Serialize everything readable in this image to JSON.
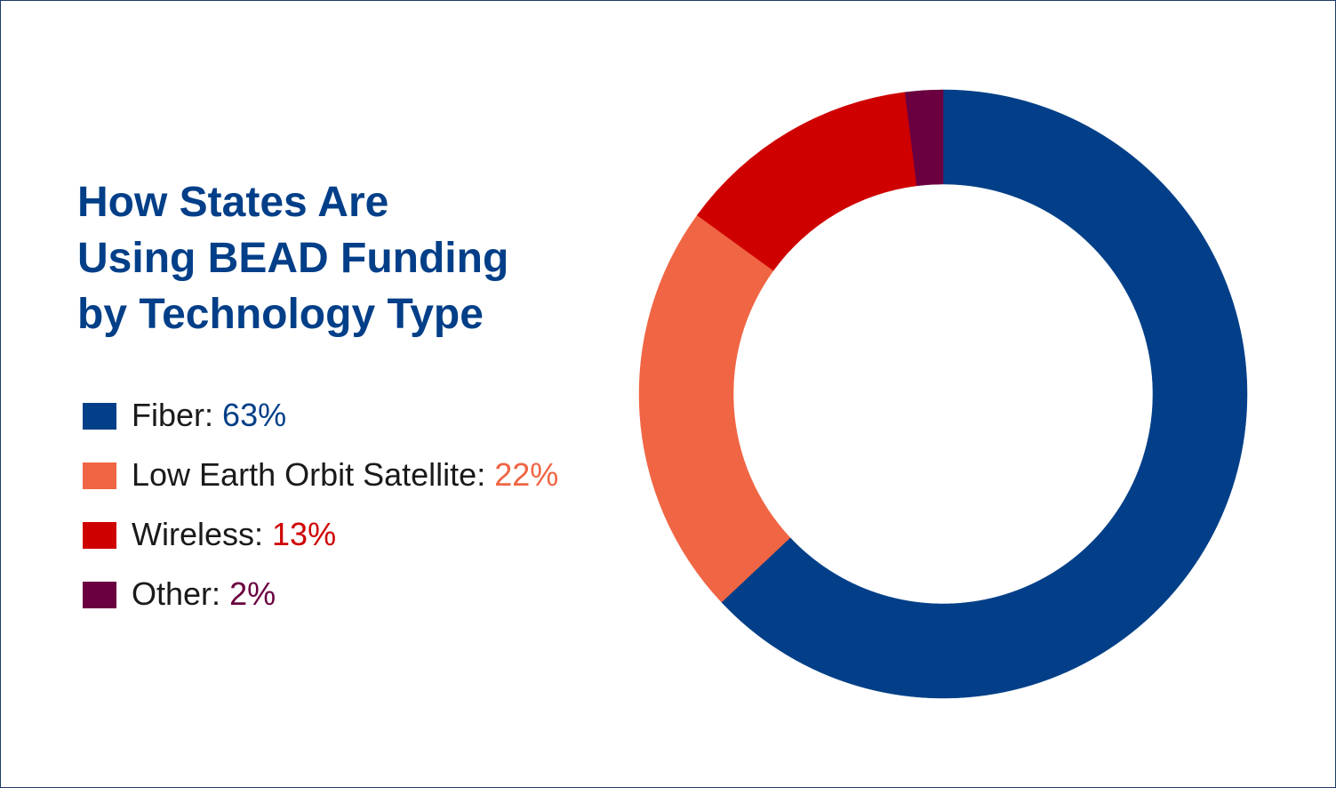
{
  "chart_data": {
    "type": "pie",
    "title": "How States Are Using BEAD Funding by Technology Type",
    "title_lines": [
      "How States Are",
      "Using BEAD Funding",
      "by Technology Type"
    ],
    "donut": true,
    "legend_position": "left",
    "slices": [
      {
        "label": "Fiber",
        "value": 63,
        "display": "63%",
        "color": "#023f88"
      },
      {
        "label": "Low Earth Orbit Satellite",
        "value": 22,
        "display": "22%",
        "color": "#f06544"
      },
      {
        "label": "Wireless",
        "value": 13,
        "display": "13%",
        "color": "#cf0000"
      },
      {
        "label": "Other",
        "value": 2,
        "display": "2%",
        "color": "#6a0040"
      }
    ]
  }
}
